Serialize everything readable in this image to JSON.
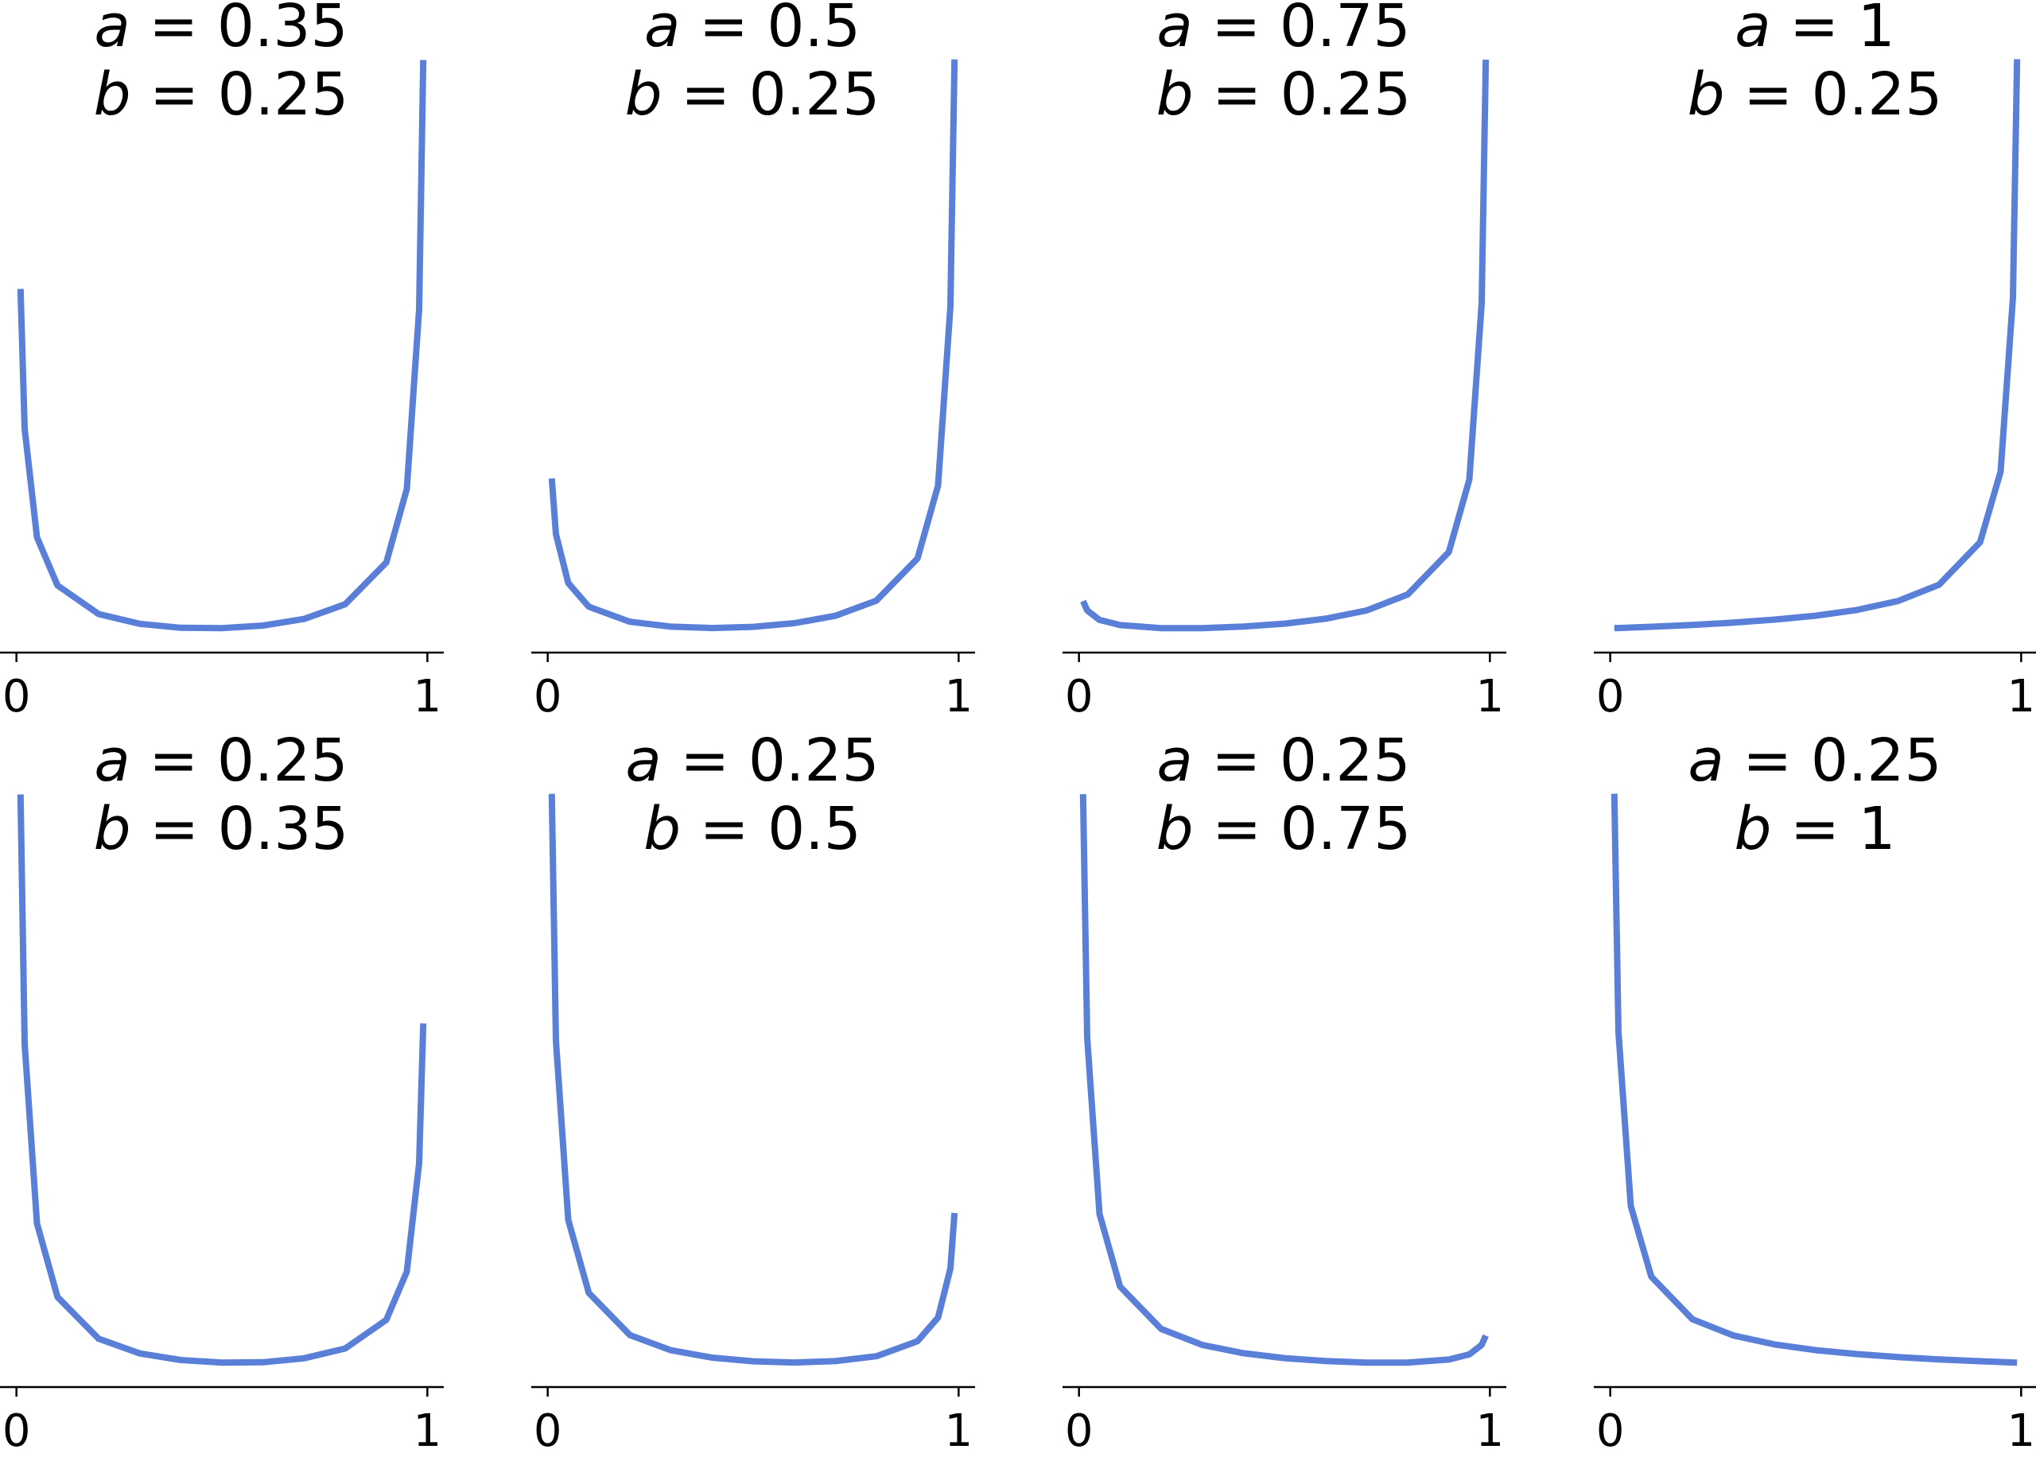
{
  "chart_data": [
    {
      "type": "line",
      "title": [
        "a = 0.35",
        "b = 0.25"
      ],
      "x": [
        0.01,
        0.02,
        0.05,
        0.1,
        0.2,
        0.3,
        0.4,
        0.5,
        0.6,
        0.7,
        0.8,
        0.9,
        0.95,
        0.98,
        0.99
      ],
      "values": [
        3.24,
        2.08,
        1.18,
        0.78,
        0.543,
        0.462,
        0.429,
        0.426,
        0.447,
        0.502,
        0.624,
        0.97,
        1.58,
        3.07,
        5.14
      ],
      "color": "#5a7fd8",
      "xlim": [
        -0.04,
        1.04
      ],
      "ylim": [
        0.19,
        5.38
      ],
      "xticks": [
        0,
        1
      ]
    },
    {
      "type": "line",
      "title": [
        "a = 0.5",
        "b = 0.25"
      ],
      "x": [
        0.01,
        0.02,
        0.05,
        0.1,
        0.2,
        0.3,
        0.4,
        0.5,
        0.6,
        0.7,
        0.8,
        0.9,
        0.95,
        0.98,
        0.99
      ],
      "values": [
        1.92,
        1.37,
        0.886,
        0.652,
        0.504,
        0.455,
        0.442,
        0.454,
        0.49,
        0.563,
        0.713,
        1.13,
        1.85,
        3.62,
        6.06
      ],
      "color": "#5a7fd8",
      "xlim": [
        -0.04,
        1.04
      ],
      "ylim": [
        0.16,
        6.34
      ],
      "xticks": [
        0,
        1
      ]
    },
    {
      "type": "line",
      "title": [
        "a = 0.75",
        "b = 0.25"
      ],
      "x": [
        0.01,
        0.02,
        0.05,
        0.1,
        0.2,
        0.3,
        0.4,
        0.5,
        0.6,
        0.7,
        0.8,
        0.9,
        0.95,
        0.98,
        0.99
      ],
      "values": [
        0.717,
        0.608,
        0.495,
        0.433,
        0.398,
        0.398,
        0.415,
        0.45,
        0.509,
        0.607,
        0.796,
        1.3,
        2.16,
        4.25,
        7.14
      ],
      "color": "#5a7fd8",
      "xlim": [
        -0.04,
        1.04
      ],
      "ylim": [
        0.06,
        7.48
      ],
      "xticks": [
        0,
        1
      ]
    },
    {
      "type": "line",
      "title": [
        "a = 1",
        "b = 0.25"
      ],
      "x": [
        0.01,
        0.02,
        0.05,
        0.1,
        0.2,
        0.3,
        0.4,
        0.5,
        0.6,
        0.7,
        0.8,
        0.9,
        0.95,
        0.98,
        0.99
      ],
      "values": [
        0.252,
        0.254,
        0.26,
        0.271,
        0.296,
        0.327,
        0.367,
        0.42,
        0.497,
        0.617,
        0.836,
        1.41,
        2.36,
        4.7,
        7.91
      ],
      "color": "#5a7fd8",
      "xlim": [
        -0.04,
        1.04
      ],
      "ylim": [
        -0.13,
        8.29
      ],
      "xticks": [
        0,
        1
      ]
    },
    {
      "type": "line",
      "title": [
        "a = 0.25",
        "b = 0.35"
      ],
      "x": [
        0.01,
        0.02,
        0.05,
        0.1,
        0.2,
        0.3,
        0.4,
        0.5,
        0.6,
        0.7,
        0.8,
        0.9,
        0.95,
        0.98,
        0.99
      ],
      "values": [
        5.14,
        3.07,
        1.58,
        0.97,
        0.624,
        0.502,
        0.447,
        0.426,
        0.429,
        0.462,
        0.543,
        0.78,
        1.18,
        2.08,
        3.24
      ],
      "color": "#5a7fd8",
      "xlim": [
        -0.04,
        1.04
      ],
      "ylim": [
        0.19,
        5.38
      ],
      "xticks": [
        0,
        1
      ]
    },
    {
      "type": "line",
      "title": [
        "a = 0.25",
        "b = 0.5"
      ],
      "x": [
        0.01,
        0.02,
        0.05,
        0.1,
        0.2,
        0.3,
        0.4,
        0.5,
        0.6,
        0.7,
        0.8,
        0.9,
        0.95,
        0.98,
        0.99
      ],
      "values": [
        6.06,
        3.62,
        1.85,
        1.13,
        0.713,
        0.563,
        0.49,
        0.454,
        0.442,
        0.455,
        0.504,
        0.652,
        0.886,
        1.37,
        1.92
      ],
      "color": "#5a7fd8",
      "xlim": [
        -0.04,
        1.04
      ],
      "ylim": [
        0.16,
        6.34
      ],
      "xticks": [
        0,
        1
      ]
    },
    {
      "type": "line",
      "title": [
        "a = 0.25",
        "b = 0.75"
      ],
      "x": [
        0.01,
        0.02,
        0.05,
        0.1,
        0.2,
        0.3,
        0.4,
        0.5,
        0.6,
        0.7,
        0.8,
        0.9,
        0.95,
        0.98,
        0.99
      ],
      "values": [
        7.14,
        4.25,
        2.16,
        1.3,
        0.796,
        0.607,
        0.509,
        0.45,
        0.415,
        0.398,
        0.398,
        0.433,
        0.495,
        0.608,
        0.717
      ],
      "color": "#5a7fd8",
      "xlim": [
        -0.04,
        1.04
      ],
      "ylim": [
        0.06,
        7.48
      ],
      "xticks": [
        0,
        1
      ]
    },
    {
      "type": "line",
      "title": [
        "a = 0.25",
        "b = 1"
      ],
      "x": [
        0.01,
        0.02,
        0.05,
        0.1,
        0.2,
        0.3,
        0.4,
        0.5,
        0.6,
        0.7,
        0.8,
        0.9,
        0.95,
        0.98,
        0.99
      ],
      "values": [
        7.91,
        4.7,
        2.36,
        1.41,
        0.836,
        0.617,
        0.497,
        0.42,
        0.367,
        0.327,
        0.296,
        0.271,
        0.26,
        0.254,
        0.252
      ],
      "color": "#5a7fd8",
      "xlim": [
        -0.04,
        1.04
      ],
      "ylim": [
        -0.13,
        8.29
      ],
      "xticks": [
        0,
        1
      ]
    }
  ]
}
